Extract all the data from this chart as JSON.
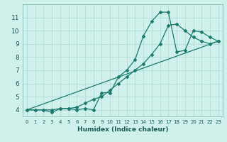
{
  "xlabel": "Humidex (Indice chaleur)",
  "ylabel": "",
  "bg_color": "#cff0eb",
  "grid_color": "#aad8d0",
  "line_color": "#1a7a6e",
  "xlim": [
    -0.5,
    23.5
  ],
  "ylim": [
    3.5,
    12.0
  ],
  "yticks": [
    4,
    5,
    6,
    7,
    8,
    9,
    10,
    11
  ],
  "xticks": [
    0,
    1,
    2,
    3,
    4,
    5,
    6,
    7,
    8,
    9,
    10,
    11,
    12,
    13,
    14,
    15,
    16,
    17,
    18,
    19,
    20,
    21,
    22,
    23
  ],
  "line1_x": [
    0,
    1,
    2,
    3,
    4,
    5,
    6,
    7,
    8,
    9,
    10,
    11,
    12,
    13,
    14,
    15,
    16,
    17,
    18,
    19,
    20,
    21,
    22,
    23
  ],
  "line1_y": [
    4.0,
    4.0,
    4.0,
    3.8,
    4.1,
    4.1,
    4.0,
    4.1,
    4.0,
    5.3,
    5.3,
    6.5,
    7.0,
    7.8,
    9.6,
    10.7,
    11.4,
    11.4,
    8.4,
    8.5,
    10.0,
    9.9,
    9.5,
    9.2
  ],
  "line2_x": [
    0,
    1,
    2,
    3,
    4,
    5,
    6,
    7,
    8,
    9,
    10,
    11,
    12,
    13,
    14,
    15,
    16,
    17,
    18,
    19,
    20,
    21,
    22,
    23
  ],
  "line2_y": [
    4.0,
    4.0,
    4.0,
    4.0,
    4.1,
    4.1,
    4.2,
    4.5,
    4.8,
    5.0,
    5.5,
    6.0,
    6.5,
    7.0,
    7.5,
    8.2,
    9.0,
    10.4,
    10.5,
    10.0,
    9.5,
    9.2,
    9.0,
    9.2
  ],
  "line3_x": [
    0,
    23
  ],
  "line3_y": [
    4.0,
    9.2
  ],
  "xlabel_fontsize": 6.5,
  "tick_fontsize_x": 5.0,
  "tick_fontsize_y": 6.5
}
